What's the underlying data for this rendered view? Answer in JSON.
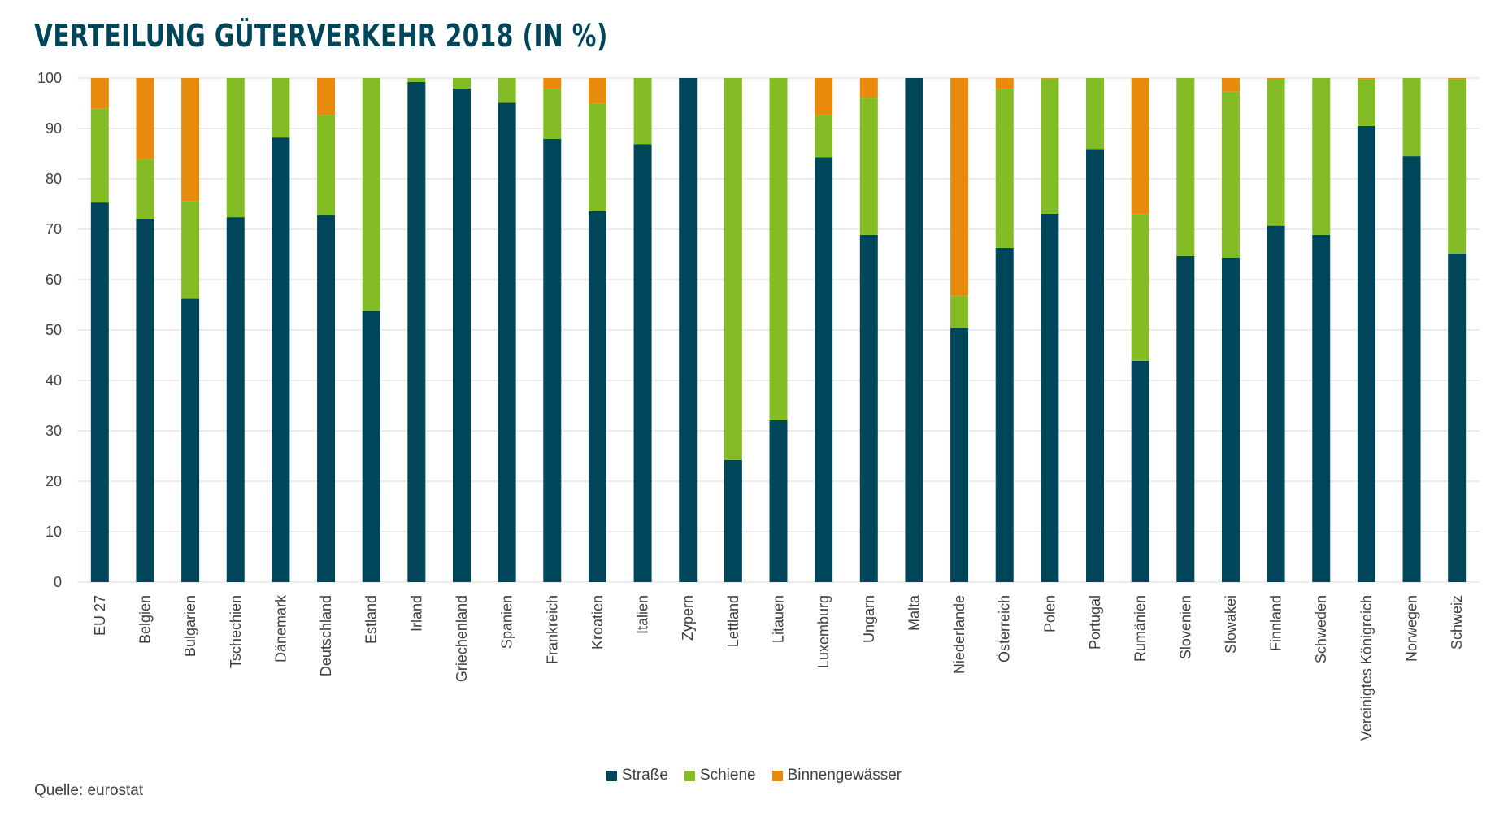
{
  "chart_data": {
    "type": "bar",
    "stacked": true,
    "title": "VERTEILUNG GÜTERVERKEHR 2018 (IN %)",
    "xlabel": "",
    "ylabel": "",
    "ylim": [
      0,
      100
    ],
    "yticks": [
      0,
      10,
      20,
      30,
      40,
      50,
      60,
      70,
      80,
      90,
      100
    ],
    "grid": true,
    "legend_position": "bottom-center",
    "categories": [
      "EU 27",
      "Belgien",
      "Bulgarien",
      "Tschechien",
      "Dänemark",
      "Deutschland",
      "Estland",
      "Irland",
      "Griechenland",
      "Spanien",
      "Frankreich",
      "Kroatien",
      "Italien",
      "Zypern",
      "Lettland",
      "Litauen",
      "Luxemburg",
      "Ungarn",
      "Malta",
      "Niederlande",
      "Österreich",
      "Polen",
      "Portugal",
      "Rumänien",
      "Slovenien",
      "Slowakei",
      "Finnland",
      "Schweden",
      "Vereinigtes Königreich",
      "Norwegen",
      "Schweiz"
    ],
    "series": [
      {
        "name": "Straße",
        "color": "#00465a",
        "values": [
          75.3,
          72.1,
          56.2,
          72.4,
          88.2,
          72.8,
          53.8,
          99.2,
          97.9,
          95.1,
          87.9,
          73.6,
          86.9,
          100,
          24.2,
          32.1,
          84.3,
          68.9,
          100,
          50.4,
          66.3,
          73.1,
          85.9,
          43.9,
          64.7,
          64.4,
          70.7,
          68.9,
          90.5,
          84.5,
          65.2
        ]
      },
      {
        "name": "Schiene",
        "color": "#84bc26",
        "values": [
          18.7,
          11.8,
          19.4,
          27.6,
          11.8,
          19.9,
          46.2,
          0.8,
          2.1,
          4.9,
          9.9,
          21.3,
          13.1,
          0,
          75.8,
          67.9,
          8.3,
          27.2,
          0,
          6.5,
          31.5,
          26.8,
          14.1,
          29.1,
          35.3,
          32.9,
          29.0,
          31.1,
          9.3,
          15.5,
          34.6
        ]
      },
      {
        "name": "Binnengewässer",
        "color": "#e88a0c",
        "values": [
          6.0,
          16.1,
          24.4,
          0,
          0,
          7.3,
          0,
          0,
          0,
          0,
          2.2,
          5.1,
          0,
          0,
          0,
          0,
          7.4,
          3.9,
          0,
          43.1,
          2.2,
          0.1,
          0,
          27.0,
          0,
          2.7,
          0.3,
          0,
          0.2,
          0,
          0.2
        ]
      }
    ]
  },
  "source_text": "Quelle: eurostat",
  "colors": {
    "title": "#00465a",
    "grid": "#d9d9d9",
    "text": "#404040"
  }
}
